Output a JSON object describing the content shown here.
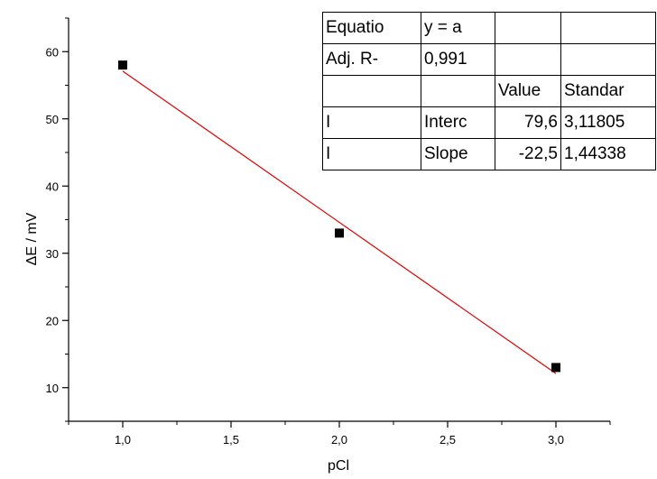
{
  "chart_data": {
    "type": "scatter",
    "xlabel": "pCl",
    "ylabel": "ΔE / mV",
    "xlim": [
      0.75,
      3.25
    ],
    "ylim": [
      5,
      65
    ],
    "x_ticks": [
      1.0,
      1.5,
      2.0,
      2.5,
      3.0
    ],
    "x_tick_labels": [
      "1,0",
      "1,5",
      "2,0",
      "2,5",
      "3,0"
    ],
    "y_ticks": [
      10,
      20,
      30,
      40,
      50,
      60
    ],
    "y_tick_labels": [
      "10",
      "20",
      "30",
      "40",
      "50",
      "60"
    ],
    "grid": false,
    "series": [
      {
        "x": [
          1.0,
          2.0,
          3.0
        ],
        "y": [
          58,
          33,
          13
        ],
        "marker": "square",
        "color": "#000000"
      }
    ],
    "fit_line": {
      "x": [
        1.0,
        3.0
      ],
      "y": [
        57.1,
        12.1
      ],
      "color": "#e00000"
    },
    "fit_table": [
      [
        "Equatio",
        "y = a",
        "",
        ""
      ],
      [
        "Adj. R-",
        "0,991",
        "",
        ""
      ],
      [
        "",
        "",
        "Value",
        "Standar"
      ],
      [
        "I",
        "Interc",
        "79,6",
        "3,11805"
      ],
      [
        "I",
        "Slope",
        "-22,5",
        "1,44338"
      ]
    ]
  }
}
